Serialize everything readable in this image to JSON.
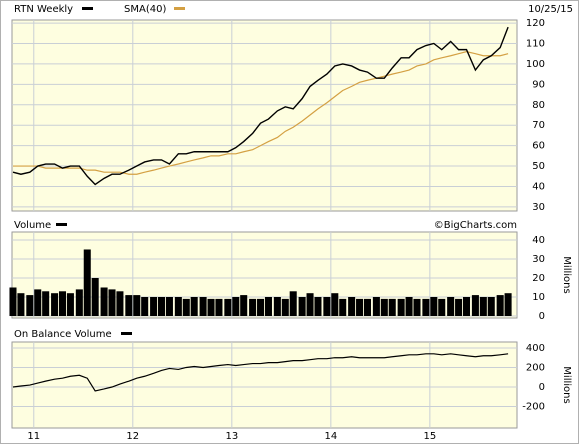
{
  "chart_data": [
    {
      "type": "line",
      "date_label": "10/25/15",
      "x": [
        2010.79,
        2010.87,
        2010.96,
        2011.04,
        2011.12,
        2011.21,
        2011.29,
        2011.37,
        2011.46,
        2011.54,
        2011.62,
        2011.71,
        2011.79,
        2011.87,
        2011.96,
        2012.04,
        2012.12,
        2012.21,
        2012.29,
        2012.37,
        2012.46,
        2012.54,
        2012.62,
        2012.71,
        2012.79,
        2012.87,
        2012.96,
        2013.04,
        2013.12,
        2013.21,
        2013.29,
        2013.37,
        2013.46,
        2013.54,
        2013.62,
        2013.71,
        2013.79,
        2013.87,
        2013.96,
        2014.04,
        2014.12,
        2014.21,
        2014.29,
        2014.37,
        2014.46,
        2014.54,
        2014.62,
        2014.71,
        2014.79,
        2014.87,
        2014.96,
        2015.04,
        2015.12,
        2015.21,
        2015.29,
        2015.37,
        2015.46,
        2015.54,
        2015.62,
        2015.71,
        2015.79
      ],
      "series": [
        {
          "name": "RTN Weekly",
          "color": "#000000",
          "values": [
            47,
            46,
            47,
            50,
            51,
            51,
            49,
            50,
            50,
            45,
            41,
            44,
            46,
            46,
            48,
            50,
            52,
            53,
            53,
            51,
            56,
            56,
            57,
            57,
            57,
            57,
            57,
            59,
            62,
            66,
            71,
            73,
            77,
            79,
            78,
            83,
            89,
            92,
            95,
            99,
            100,
            99,
            97,
            96,
            93,
            93,
            98,
            103,
            103,
            107,
            109,
            110,
            107,
            111,
            107,
            107,
            97,
            102,
            104,
            108,
            118
          ]
        },
        {
          "name": "SMA(40)",
          "color": "#d4a043",
          "values": [
            50,
            50,
            50,
            50,
            49,
            49,
            49,
            49,
            49,
            48,
            48,
            47,
            47,
            47,
            46,
            46,
            47,
            48,
            49,
            50,
            51,
            52,
            53,
            54,
            55,
            55,
            56,
            56,
            57,
            58,
            60,
            62,
            64,
            67,
            69,
            72,
            75,
            78,
            81,
            84,
            87,
            89,
            91,
            92,
            93,
            94,
            95,
            96,
            97,
            99,
            100,
            102,
            103,
            104,
            105,
            106,
            105,
            104,
            104,
            104,
            105
          ]
        }
      ],
      "ylim": [
        28,
        121.5
      ],
      "yticks": [
        30,
        40,
        50,
        60,
        70,
        80,
        90,
        100,
        110,
        120
      ],
      "grid": true
    },
    {
      "type": "bar",
      "title": "Volume",
      "watermark": "©BigCharts.com",
      "y_label": "Millions",
      "color": "#000000",
      "values": [
        15,
        12,
        11,
        14,
        13,
        12,
        13,
        12,
        14,
        35,
        20,
        15,
        14,
        13,
        11,
        11,
        10,
        10,
        10,
        10,
        10,
        9,
        10,
        10,
        9,
        9,
        9,
        10,
        11,
        9,
        9,
        10,
        10,
        9,
        13,
        10,
        12,
        10,
        10,
        12,
        9,
        10,
        9,
        9,
        10,
        9,
        9,
        9,
        10,
        9,
        9,
        10,
        9,
        10,
        9,
        10,
        11,
        10,
        10,
        11,
        12
      ],
      "ylim": [
        0,
        44.2
      ],
      "yticks": [
        0,
        10,
        20,
        30,
        40
      ],
      "grid": true
    },
    {
      "type": "line",
      "title": "On Balance Volume",
      "y_label": "Millions",
      "color": "#000000",
      "values": [
        0,
        10,
        20,
        40,
        60,
        80,
        90,
        110,
        120,
        90,
        -40,
        -20,
        0,
        30,
        60,
        90,
        110,
        140,
        170,
        190,
        180,
        200,
        210,
        200,
        210,
        220,
        230,
        220,
        230,
        240,
        240,
        250,
        250,
        260,
        270,
        270,
        280,
        290,
        290,
        300,
        300,
        310,
        300,
        300,
        300,
        300,
        310,
        320,
        330,
        330,
        340,
        340,
        330,
        340,
        330,
        320,
        310,
        320,
        320,
        330,
        340
      ],
      "ylim": [
        -420,
        461
      ],
      "yticks": [
        -200,
        0,
        200,
        400
      ],
      "grid": true,
      "xlim": [
        2010.78,
        2015.88
      ],
      "xticks": [
        {
          "value": 2011,
          "label": "11"
        },
        {
          "value": 2012,
          "label": "12"
        },
        {
          "value": 2013,
          "label": "13"
        },
        {
          "value": 2014,
          "label": "14"
        },
        {
          "value": 2015,
          "label": "15"
        }
      ]
    }
  ]
}
